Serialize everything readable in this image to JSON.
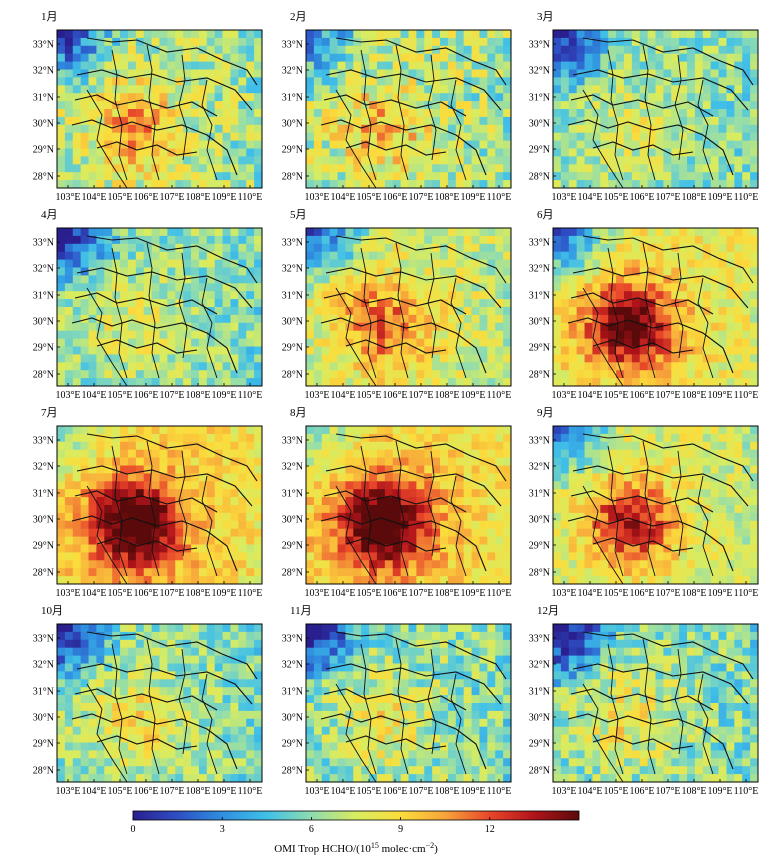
{
  "panels": [
    {
      "title": "1月",
      "level": 0.5,
      "hotspot": 0.45,
      "west": 0.55,
      "noise": 0.3,
      "seed": 11
    },
    {
      "title": "2月",
      "level": 0.5,
      "hotspot": 0.4,
      "west": 0.35,
      "noise": 0.32,
      "seed": 22
    },
    {
      "title": "3月",
      "level": 0.45,
      "hotspot": 0.2,
      "west": 0.55,
      "noise": 0.25,
      "seed": 33
    },
    {
      "title": "4月",
      "level": 0.45,
      "hotspot": 0.25,
      "west": 0.6,
      "noise": 0.25,
      "seed": 44
    },
    {
      "title": "5月",
      "level": 0.55,
      "hotspot": 0.55,
      "west": 0.55,
      "noise": 0.25,
      "seed": 55
    },
    {
      "title": "6月",
      "level": 0.6,
      "hotspot": 0.95,
      "west": 0.6,
      "noise": 0.22,
      "seed": 66
    },
    {
      "title": "7月",
      "level": 0.65,
      "hotspot": 1.0,
      "west": 0.25,
      "noise": 0.2,
      "seed": 77
    },
    {
      "title": "8月",
      "level": 0.65,
      "hotspot": 1.0,
      "west": 0.25,
      "noise": 0.2,
      "seed": 88
    },
    {
      "title": "9月",
      "level": 0.55,
      "hotspot": 0.8,
      "west": 0.5,
      "noise": 0.22,
      "seed": 99
    },
    {
      "title": "10月",
      "level": 0.45,
      "hotspot": 0.35,
      "west": 0.55,
      "noise": 0.25,
      "seed": 111
    },
    {
      "title": "11月",
      "level": 0.45,
      "hotspot": 0.3,
      "west": 0.6,
      "noise": 0.28,
      "seed": 122
    },
    {
      "title": "12月",
      "level": 0.45,
      "hotspot": 0.3,
      "west": 0.65,
      "noise": 0.28,
      "seed": 133
    }
  ],
  "lat_ticks": [
    "33°N",
    "32°N",
    "31°N",
    "30°N",
    "29°N",
    "28°N"
  ],
  "lon_ticks": [
    "103°E",
    "104°E",
    "105°E",
    "106°E",
    "107°E",
    "108°E",
    "109°E",
    "110°E"
  ],
  "colorbar": {
    "ticks": [
      "0",
      "3",
      "6",
      "9",
      "12"
    ],
    "title_prefix": "OMI Trop HCHO/(10",
    "title_exp": "15",
    "title_suffix": " molec·cm",
    "title_exp2": "−2",
    "title_close": ")",
    "range": [
      0,
      15
    ],
    "colors": [
      "#2a1f8f",
      "#2e4fc4",
      "#2f8fe0",
      "#40c0e8",
      "#8fdcb0",
      "#d8ec60",
      "#fbdc3c",
      "#f7a43a",
      "#e8462a",
      "#b0141a",
      "#5a0a0a"
    ]
  }
}
